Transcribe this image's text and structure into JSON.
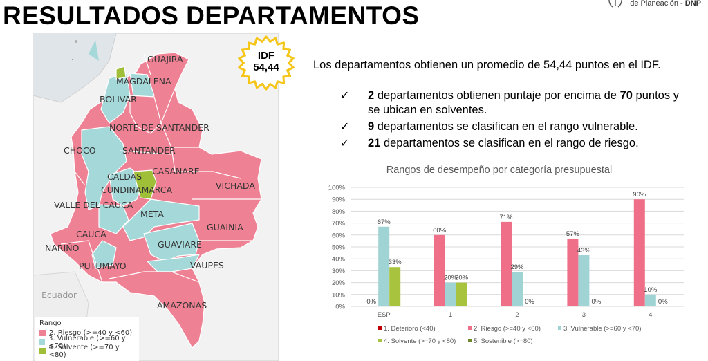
{
  "page": {
    "title": "RESULTADOS DEPARTAMENTOS",
    "logo_text": "de Planeación",
    "logo_sep": " - ",
    "logo_brand": "DNP"
  },
  "idf_badge": {
    "line1": "IDF",
    "line2": "54,44"
  },
  "summary": {
    "intro": "Los departamentos obtienen un promedio de 54,44 puntos en el IDF.",
    "bullets": [
      {
        "num": "2",
        "pre": " departamentos obtienen puntaje por encima de ",
        "num2": "70",
        "post": " puntos y se ubican en solventes."
      },
      {
        "num": "9",
        "pre": " departamentos se clasifican en el rango vulnerable."
      },
      {
        "num": "21",
        "pre": " departamentos se clasifican en el rango de riesgo."
      }
    ],
    "check_glyph": "✓"
  },
  "map": {
    "labels": {
      "guajira": "GUAJIRA",
      "magdalena": "MAGDALENA",
      "bolivar": "BOLIVAR",
      "norte": "NORTE DE SANTANDER",
      "choco": "CHOCO",
      "santander": "SANTANDER",
      "caldas": "CALDAS",
      "casanare": "CASANARE",
      "cundinamarca": "CUNDINAMARCA",
      "vichada": "VICHADA",
      "valle": "VALLE DEL CAUCA",
      "meta": "META",
      "cauca": "CAUCA",
      "guainia": "GUAINIA",
      "narino": "NARIÑO",
      "guaviare": "GUAVIARE",
      "putumayo": "PUTUMAYO",
      "vaupes": "VAUPES",
      "ecuador": "Ecuador",
      "amazonas": "AMAZONAS"
    },
    "colors": {
      "riesgo": "#ee8193",
      "vulnerable": "#a4d8d9",
      "solvente": "#a0bf39",
      "land": "#f3f3f3",
      "sea": "#dde3e6",
      "border": "#ffffff"
    },
    "legend": {
      "title": "Rango",
      "items": [
        {
          "label": "2. Riesgo (>=40 y <60)",
          "color": "#ee8193"
        },
        {
          "label": "3. Vulnerable (>=60 y <70)",
          "color": "#a4d8d9"
        },
        {
          "label": "4. Solvente (>=70 y <80)",
          "color": "#a0bf39"
        }
      ]
    }
  },
  "chart_data": {
    "type": "bar",
    "title": "Rangos de desempeño por categoría presupuestal",
    "categories": [
      "ESP",
      "1",
      "2",
      "3",
      "4"
    ],
    "ylim": [
      0,
      100
    ],
    "yticks": [
      "0%",
      "10%",
      "20%",
      "30%",
      "40%",
      "50%",
      "60%",
      "70%",
      "80%",
      "90%",
      "100%"
    ],
    "series": [
      {
        "name": "1. Deterioro (<40)",
        "color": "#c00000",
        "values": [
          null,
          null,
          null,
          null,
          null
        ]
      },
      {
        "name": "2. Riesgo (>=40 y <60)",
        "color": "#ee6f87",
        "values": [
          0,
          60,
          71,
          57,
          90
        ]
      },
      {
        "name": "3. Vulnerable (>=60 y <70)",
        "color": "#9fd3d4",
        "values": [
          67,
          20,
          29,
          43,
          10
        ]
      },
      {
        "name": "4. Solvente (>=70 y <80)",
        "color": "#a8c43f",
        "values": [
          33,
          20,
          0,
          0,
          0
        ]
      },
      {
        "name": "5. Sostenible (>=80)",
        "color": "#6f8a2a",
        "values": [
          null,
          null,
          null,
          null,
          null
        ]
      }
    ],
    "labels": [
      {
        "series": 1,
        "cat": 0,
        "text": "0%"
      },
      {
        "series": 2,
        "cat": 0,
        "text": "67%"
      },
      {
        "series": 3,
        "cat": 0,
        "text": "33%"
      },
      {
        "series": 1,
        "cat": 1,
        "text": "60%"
      },
      {
        "series": 2,
        "cat": 1,
        "text": "20%"
      },
      {
        "series": 3,
        "cat": 1,
        "text": "20%"
      },
      {
        "series": 1,
        "cat": 2,
        "text": "71%"
      },
      {
        "series": 2,
        "cat": 2,
        "text": "29%"
      },
      {
        "series": 3,
        "cat": 2,
        "text": "0%"
      },
      {
        "series": 1,
        "cat": 3,
        "text": "57%"
      },
      {
        "series": 2,
        "cat": 3,
        "text": "43%"
      },
      {
        "series": 3,
        "cat": 3,
        "text": "0%"
      },
      {
        "series": 1,
        "cat": 4,
        "text": "90%"
      },
      {
        "series": 2,
        "cat": 4,
        "text": "10%"
      },
      {
        "series": 3,
        "cat": 4,
        "text": "0%"
      }
    ],
    "legend_position": "bottom",
    "grid": true
  }
}
